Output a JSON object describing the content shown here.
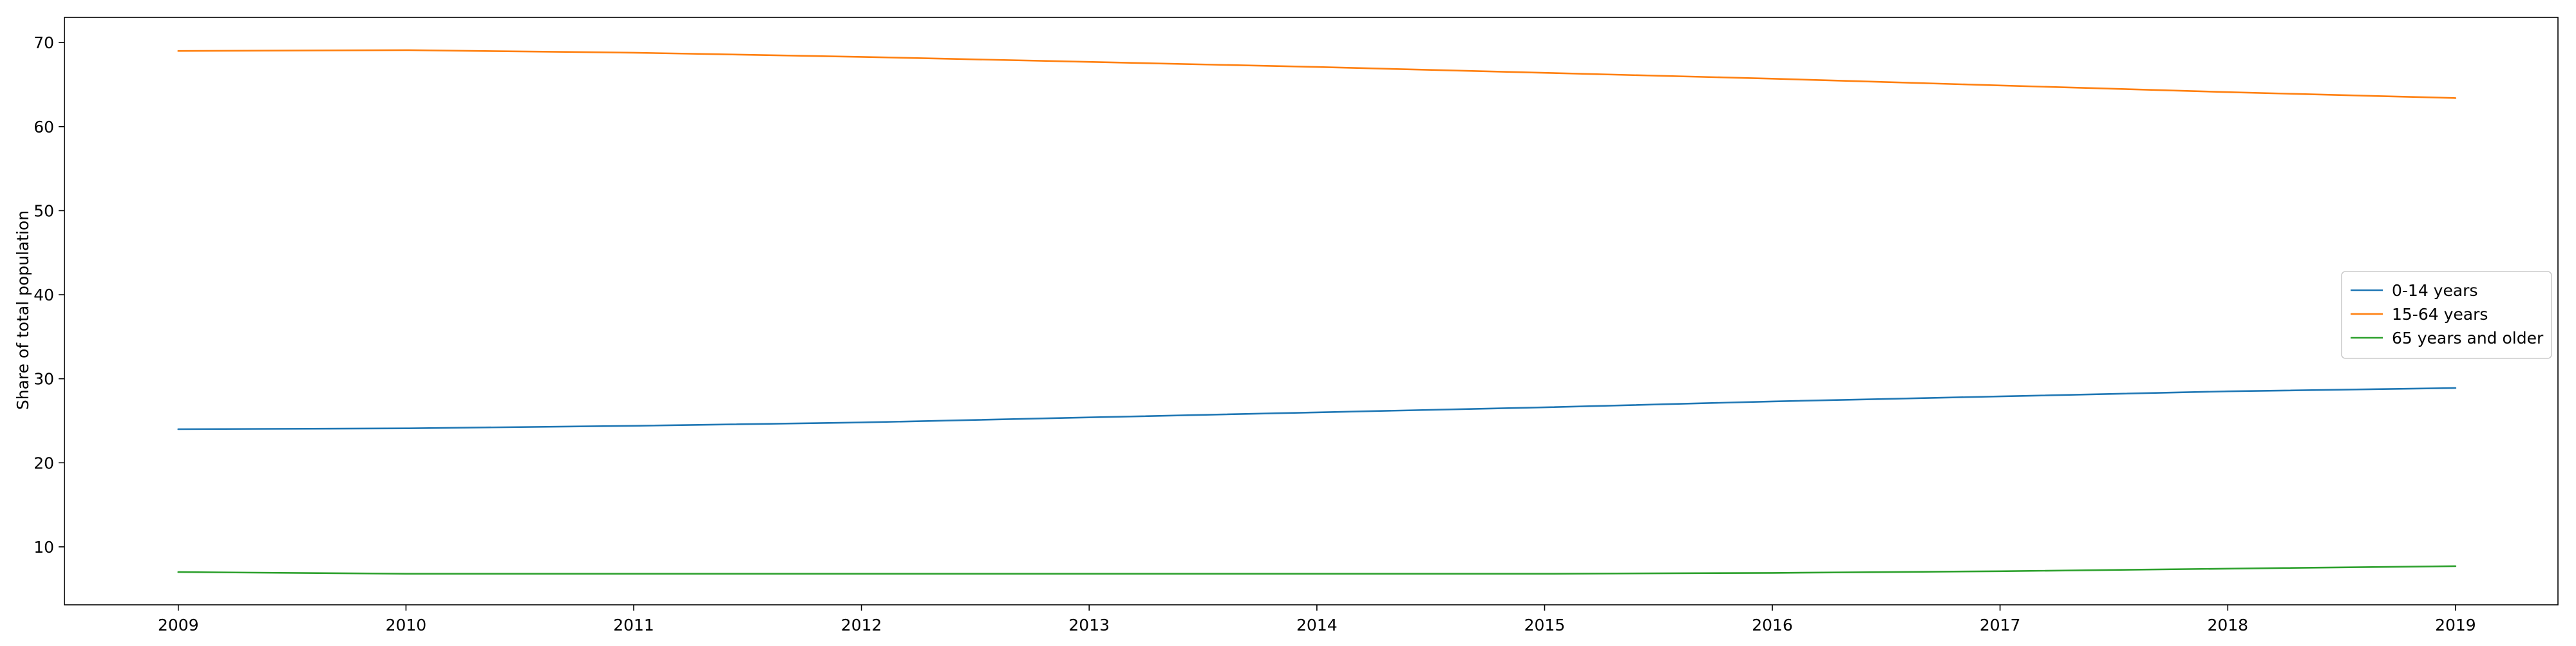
{
  "chart_data": {
    "type": "line",
    "title": "",
    "xlabel": "",
    "ylabel": "Share of total population",
    "x": [
      "2009",
      "2010",
      "2011",
      "2012",
      "2013",
      "2014",
      "2015",
      "2016",
      "2017",
      "2018",
      "2019"
    ],
    "xlim": [
      2008.5,
      2019.45
    ],
    "ylim": [
      3.1,
      73.0
    ],
    "yticks": [
      10,
      20,
      30,
      40,
      50,
      60,
      70
    ],
    "grid": false,
    "legend_position": "center-right",
    "series": [
      {
        "name": "0-14 years",
        "color": "#1f77b4",
        "values": [
          24.0,
          24.1,
          24.4,
          24.8,
          25.4,
          26.0,
          26.6,
          27.3,
          27.9,
          28.5,
          28.9
        ]
      },
      {
        "name": "15-64 years",
        "color": "#ff7f0e",
        "values": [
          69.0,
          69.1,
          68.8,
          68.3,
          67.7,
          67.1,
          66.4,
          65.7,
          64.9,
          64.1,
          63.4
        ]
      },
      {
        "name": "65 years and older",
        "color": "#2ca02c",
        "values": [
          7.0,
          6.8,
          6.8,
          6.8,
          6.8,
          6.8,
          6.8,
          6.9,
          7.1,
          7.4,
          7.7
        ]
      }
    ]
  }
}
